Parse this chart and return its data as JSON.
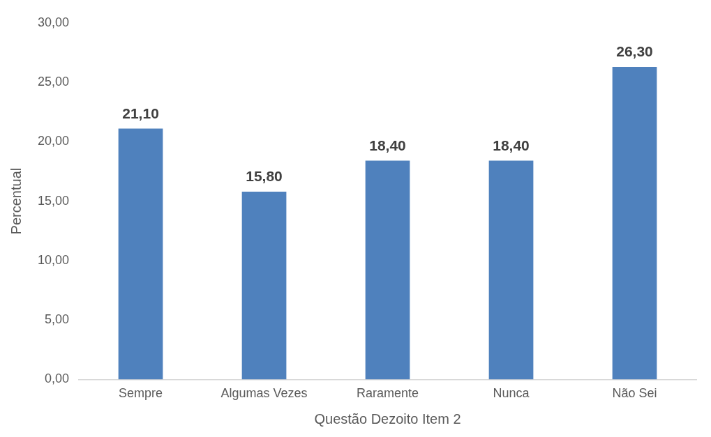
{
  "chart_data": {
    "type": "bar",
    "xlabel": "Questão Dezoito Item 2",
    "ylabel": "Percentual",
    "categories": [
      "Sempre",
      "Algumas Vezes",
      "Raramente",
      "Nunca",
      "Não Sei"
    ],
    "values": [
      21.1,
      15.8,
      18.4,
      18.4,
      26.3
    ],
    "value_labels": [
      "21,10",
      "15,80",
      "18,40",
      "18,40",
      "26,30"
    ],
    "color": "#4f81bd",
    "ylim": [
      0,
      30
    ],
    "yticks": [
      {
        "value": 0,
        "label": "0,00"
      },
      {
        "value": 5,
        "label": "5,00"
      },
      {
        "value": 10,
        "label": "10,00"
      },
      {
        "value": 15,
        "label": "15,00"
      },
      {
        "value": 20,
        "label": "20,00"
      },
      {
        "value": 25,
        "label": "25,00"
      },
      {
        "value": 30,
        "label": "30,00"
      }
    ],
    "grid": false,
    "legend": false
  }
}
